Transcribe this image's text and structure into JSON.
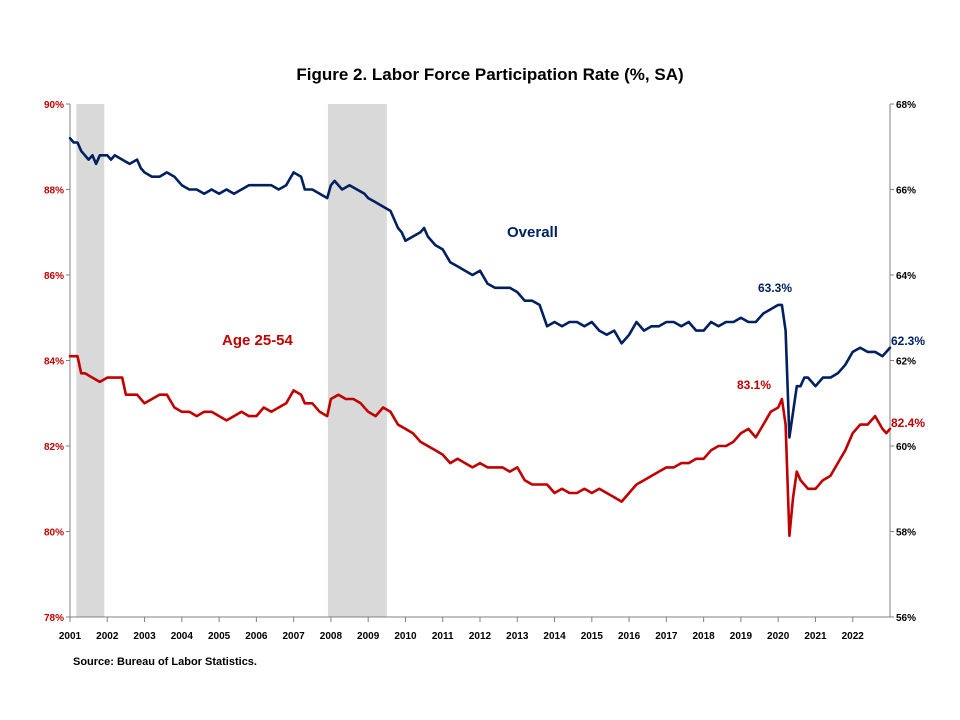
{
  "chart_data": {
    "type": "line",
    "title": "Figure 2. Labor Force Participation  Rate (%, SA)",
    "source": "Source: Bureau of Labor Statistics.",
    "x_range": [
      2001.0,
      2023.0
    ],
    "x_ticks": [
      "2001",
      "2002",
      "2003",
      "2004",
      "2005",
      "2006",
      "2007",
      "2008",
      "2009",
      "2010",
      "2011",
      "2012",
      "2013",
      "2014",
      "2015",
      "2016",
      "2017",
      "2018",
      "2019",
      "2020",
      "2021",
      "2022"
    ],
    "y_left": {
      "range": [
        78,
        90
      ],
      "step": 2,
      "tick_labels": [
        "78%",
        "80%",
        "82%",
        "84%",
        "86%",
        "88%",
        "90%"
      ],
      "color": "#C00000"
    },
    "y_right": {
      "range": [
        56,
        68
      ],
      "step": 2,
      "tick_labels": [
        "56%",
        "58%",
        "60%",
        "62%",
        "64%",
        "66%",
        "68%"
      ],
      "color": "#000000"
    },
    "grid": false,
    "recessions": [
      {
        "start": 2001.17,
        "end": 2001.92
      },
      {
        "start": 2007.92,
        "end": 2009.5
      }
    ],
    "colors": {
      "overall": "#002060",
      "age": "#C00000",
      "recession": "#D9D9D9",
      "axis": "#808080"
    },
    "series": [
      {
        "name": "Overall",
        "axis": "right",
        "color": "#002060",
        "points": [
          [
            2001.0,
            67.2
          ],
          [
            2001.1,
            67.1
          ],
          [
            2001.2,
            67.1
          ],
          [
            2001.3,
            66.9
          ],
          [
            2001.4,
            66.8
          ],
          [
            2001.5,
            66.7
          ],
          [
            2001.6,
            66.8
          ],
          [
            2001.7,
            66.6
          ],
          [
            2001.8,
            66.8
          ],
          [
            2001.9,
            66.8
          ],
          [
            2002.0,
            66.8
          ],
          [
            2002.1,
            66.7
          ],
          [
            2002.2,
            66.8
          ],
          [
            2002.4,
            66.7
          ],
          [
            2002.6,
            66.6
          ],
          [
            2002.8,
            66.7
          ],
          [
            2002.9,
            66.5
          ],
          [
            2003.0,
            66.4
          ],
          [
            2003.2,
            66.3
          ],
          [
            2003.4,
            66.3
          ],
          [
            2003.6,
            66.4
          ],
          [
            2003.8,
            66.3
          ],
          [
            2004.0,
            66.1
          ],
          [
            2004.2,
            66.0
          ],
          [
            2004.4,
            66.0
          ],
          [
            2004.6,
            65.9
          ],
          [
            2004.8,
            66.0
          ],
          [
            2005.0,
            65.9
          ],
          [
            2005.2,
            66.0
          ],
          [
            2005.4,
            65.9
          ],
          [
            2005.6,
            66.0
          ],
          [
            2005.8,
            66.1
          ],
          [
            2006.0,
            66.1
          ],
          [
            2006.2,
            66.1
          ],
          [
            2006.4,
            66.1
          ],
          [
            2006.6,
            66.0
          ],
          [
            2006.8,
            66.1
          ],
          [
            2007.0,
            66.4
          ],
          [
            2007.2,
            66.3
          ],
          [
            2007.3,
            66.0
          ],
          [
            2007.5,
            66.0
          ],
          [
            2007.7,
            65.9
          ],
          [
            2007.9,
            65.8
          ],
          [
            2008.0,
            66.1
          ],
          [
            2008.1,
            66.2
          ],
          [
            2008.3,
            66.0
          ],
          [
            2008.5,
            66.1
          ],
          [
            2008.7,
            66.0
          ],
          [
            2008.9,
            65.9
          ],
          [
            2009.0,
            65.8
          ],
          [
            2009.2,
            65.7
          ],
          [
            2009.4,
            65.6
          ],
          [
            2009.6,
            65.5
          ],
          [
            2009.8,
            65.1
          ],
          [
            2009.9,
            65.0
          ],
          [
            2010.0,
            64.8
          ],
          [
            2010.2,
            64.9
          ],
          [
            2010.4,
            65.0
          ],
          [
            2010.5,
            65.1
          ],
          [
            2010.6,
            64.9
          ],
          [
            2010.8,
            64.7
          ],
          [
            2011.0,
            64.6
          ],
          [
            2011.2,
            64.3
          ],
          [
            2011.4,
            64.2
          ],
          [
            2011.6,
            64.1
          ],
          [
            2011.8,
            64.0
          ],
          [
            2012.0,
            64.1
          ],
          [
            2012.2,
            63.8
          ],
          [
            2012.4,
            63.7
          ],
          [
            2012.6,
            63.7
          ],
          [
            2012.8,
            63.7
          ],
          [
            2013.0,
            63.6
          ],
          [
            2013.2,
            63.4
          ],
          [
            2013.4,
            63.4
          ],
          [
            2013.6,
            63.3
          ],
          [
            2013.8,
            62.8
          ],
          [
            2014.0,
            62.9
          ],
          [
            2014.2,
            62.8
          ],
          [
            2014.4,
            62.9
          ],
          [
            2014.6,
            62.9
          ],
          [
            2014.8,
            62.8
          ],
          [
            2015.0,
            62.9
          ],
          [
            2015.2,
            62.7
          ],
          [
            2015.4,
            62.6
          ],
          [
            2015.6,
            62.7
          ],
          [
            2015.8,
            62.4
          ],
          [
            2016.0,
            62.6
          ],
          [
            2016.2,
            62.9
          ],
          [
            2016.4,
            62.7
          ],
          [
            2016.6,
            62.8
          ],
          [
            2016.8,
            62.8
          ],
          [
            2017.0,
            62.9
          ],
          [
            2017.2,
            62.9
          ],
          [
            2017.4,
            62.8
          ],
          [
            2017.6,
            62.9
          ],
          [
            2017.8,
            62.7
          ],
          [
            2018.0,
            62.7
          ],
          [
            2018.2,
            62.9
          ],
          [
            2018.4,
            62.8
          ],
          [
            2018.6,
            62.9
          ],
          [
            2018.8,
            62.9
          ],
          [
            2019.0,
            63.0
          ],
          [
            2019.2,
            62.9
          ],
          [
            2019.4,
            62.9
          ],
          [
            2019.6,
            63.1
          ],
          [
            2019.8,
            63.2
          ],
          [
            2020.0,
            63.3
          ],
          [
            2020.1,
            63.3
          ],
          [
            2020.2,
            62.7
          ],
          [
            2020.3,
            60.2
          ],
          [
            2020.4,
            60.8
          ],
          [
            2020.5,
            61.4
          ],
          [
            2020.6,
            61.4
          ],
          [
            2020.7,
            61.6
          ],
          [
            2020.8,
            61.6
          ],
          [
            2021.0,
            61.4
          ],
          [
            2021.2,
            61.6
          ],
          [
            2021.4,
            61.6
          ],
          [
            2021.6,
            61.7
          ],
          [
            2021.8,
            61.9
          ],
          [
            2022.0,
            62.2
          ],
          [
            2022.2,
            62.3
          ],
          [
            2022.4,
            62.2
          ],
          [
            2022.6,
            62.2
          ],
          [
            2022.8,
            62.1
          ],
          [
            2022.9,
            62.2
          ],
          [
            2023.0,
            62.3
          ]
        ]
      },
      {
        "name": "Age 25-54",
        "axis": "left",
        "color": "#C00000",
        "points": [
          [
            2001.0,
            84.1
          ],
          [
            2001.2,
            84.1
          ],
          [
            2001.3,
            83.7
          ],
          [
            2001.4,
            83.7
          ],
          [
            2001.6,
            83.6
          ],
          [
            2001.8,
            83.5
          ],
          [
            2002.0,
            83.6
          ],
          [
            2002.2,
            83.6
          ],
          [
            2002.4,
            83.6
          ],
          [
            2002.5,
            83.2
          ],
          [
            2002.8,
            83.2
          ],
          [
            2003.0,
            83.0
          ],
          [
            2003.2,
            83.1
          ],
          [
            2003.4,
            83.2
          ],
          [
            2003.6,
            83.2
          ],
          [
            2003.8,
            82.9
          ],
          [
            2004.0,
            82.8
          ],
          [
            2004.2,
            82.8
          ],
          [
            2004.4,
            82.7
          ],
          [
            2004.6,
            82.8
          ],
          [
            2004.8,
            82.8
          ],
          [
            2005.0,
            82.7
          ],
          [
            2005.2,
            82.6
          ],
          [
            2005.4,
            82.7
          ],
          [
            2005.6,
            82.8
          ],
          [
            2005.8,
            82.7
          ],
          [
            2006.0,
            82.7
          ],
          [
            2006.2,
            82.9
          ],
          [
            2006.4,
            82.8
          ],
          [
            2006.6,
            82.9
          ],
          [
            2006.8,
            83.0
          ],
          [
            2007.0,
            83.3
          ],
          [
            2007.2,
            83.2
          ],
          [
            2007.3,
            83.0
          ],
          [
            2007.5,
            83.0
          ],
          [
            2007.7,
            82.8
          ],
          [
            2007.9,
            82.7
          ],
          [
            2008.0,
            83.1
          ],
          [
            2008.2,
            83.2
          ],
          [
            2008.4,
            83.1
          ],
          [
            2008.6,
            83.1
          ],
          [
            2008.8,
            83.0
          ],
          [
            2009.0,
            82.8
          ],
          [
            2009.2,
            82.7
          ],
          [
            2009.4,
            82.9
          ],
          [
            2009.6,
            82.8
          ],
          [
            2009.8,
            82.5
          ],
          [
            2010.0,
            82.4
          ],
          [
            2010.2,
            82.3
          ],
          [
            2010.4,
            82.1
          ],
          [
            2010.6,
            82.0
          ],
          [
            2010.8,
            81.9
          ],
          [
            2011.0,
            81.8
          ],
          [
            2011.2,
            81.6
          ],
          [
            2011.4,
            81.7
          ],
          [
            2011.6,
            81.6
          ],
          [
            2011.8,
            81.5
          ],
          [
            2012.0,
            81.6
          ],
          [
            2012.2,
            81.5
          ],
          [
            2012.4,
            81.5
          ],
          [
            2012.6,
            81.5
          ],
          [
            2012.8,
            81.4
          ],
          [
            2013.0,
            81.5
          ],
          [
            2013.2,
            81.2
          ],
          [
            2013.4,
            81.1
          ],
          [
            2013.6,
            81.1
          ],
          [
            2013.8,
            81.1
          ],
          [
            2014.0,
            80.9
          ],
          [
            2014.2,
            81.0
          ],
          [
            2014.4,
            80.9
          ],
          [
            2014.6,
            80.9
          ],
          [
            2014.8,
            81.0
          ],
          [
            2015.0,
            80.9
          ],
          [
            2015.2,
            81.0
          ],
          [
            2015.4,
            80.9
          ],
          [
            2015.6,
            80.8
          ],
          [
            2015.8,
            80.7
          ],
          [
            2016.0,
            80.9
          ],
          [
            2016.2,
            81.1
          ],
          [
            2016.4,
            81.2
          ],
          [
            2016.6,
            81.3
          ],
          [
            2016.8,
            81.4
          ],
          [
            2017.0,
            81.5
          ],
          [
            2017.2,
            81.5
          ],
          [
            2017.4,
            81.6
          ],
          [
            2017.6,
            81.6
          ],
          [
            2017.8,
            81.7
          ],
          [
            2018.0,
            81.7
          ],
          [
            2018.2,
            81.9
          ],
          [
            2018.4,
            82.0
          ],
          [
            2018.6,
            82.0
          ],
          [
            2018.8,
            82.1
          ],
          [
            2019.0,
            82.3
          ],
          [
            2019.2,
            82.4
          ],
          [
            2019.4,
            82.2
          ],
          [
            2019.6,
            82.5
          ],
          [
            2019.8,
            82.8
          ],
          [
            2020.0,
            82.9
          ],
          [
            2020.1,
            83.1
          ],
          [
            2020.2,
            82.5
          ],
          [
            2020.3,
            79.9
          ],
          [
            2020.4,
            80.8
          ],
          [
            2020.5,
            81.4
          ],
          [
            2020.6,
            81.2
          ],
          [
            2020.7,
            81.1
          ],
          [
            2020.8,
            81.0
          ],
          [
            2021.0,
            81.0
          ],
          [
            2021.2,
            81.2
          ],
          [
            2021.4,
            81.3
          ],
          [
            2021.6,
            81.6
          ],
          [
            2021.8,
            81.9
          ],
          [
            2022.0,
            82.3
          ],
          [
            2022.2,
            82.5
          ],
          [
            2022.4,
            82.5
          ],
          [
            2022.6,
            82.7
          ],
          [
            2022.8,
            82.4
          ],
          [
            2022.9,
            82.3
          ],
          [
            2023.0,
            82.4
          ]
        ]
      }
    ],
    "annotations": [
      {
        "text": "63.3%",
        "series": "Overall",
        "x": 2020.1,
        "y": 63.3
      },
      {
        "text": "62.3%",
        "series": "Overall",
        "x": 2023.0,
        "y": 62.3
      },
      {
        "text": "83.1%",
        "series": "Age 25-54",
        "x": 2020.1,
        "y": 83.1
      },
      {
        "text": "82.4%",
        "series": "Age 25-54",
        "x": 2023.0,
        "y": 82.4
      }
    ]
  }
}
